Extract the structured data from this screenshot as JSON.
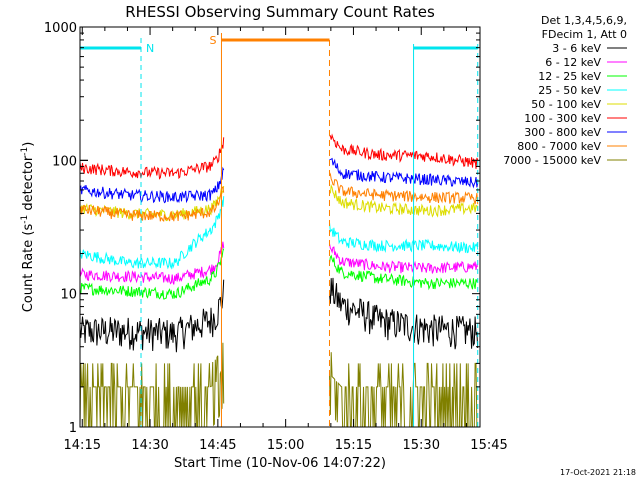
{
  "chart_data": {
    "type": "line",
    "title": "RHESSI Observing Summary Count Rates",
    "xlabel": "Start Time (10-Nov-06 14:07:22)",
    "ylabel_main": "Count Rate (s",
    "ylabel_sup1": "-1",
    "ylabel_mid": " detector",
    "ylabel_sup2": "-1",
    "ylabel_end": ")",
    "y_scale": "log",
    "ylim": [
      1,
      1000
    ],
    "xlim_minutes": [
      14.5,
      103
    ],
    "x_ticks": [
      {
        "label": "14:15",
        "minute": 15
      },
      {
        "label": "14:30",
        "minute": 30
      },
      {
        "label": "14:45",
        "minute": 45
      },
      {
        "label": "15:00",
        "minute": 60
      },
      {
        "label": "15:15",
        "minute": 75
      },
      {
        "label": "15:30",
        "minute": 90
      },
      {
        "label": "15:45",
        "minute": 105
      }
    ],
    "y_ticks": [
      {
        "label": "1",
        "value": 1
      },
      {
        "label": "10",
        "value": 10
      },
      {
        "label": "100",
        "value": 100
      },
      {
        "label": "1000",
        "value": 1000
      }
    ],
    "grid": false,
    "legend_position": "right",
    "legend_header": [
      "Det 1,3,4,5,6,9,",
      "FDecim 1, Att 0"
    ],
    "observing_gap_minutes": [
      46.3,
      69.7
    ],
    "series": [
      {
        "name": "3 - 6 keV",
        "color": "#000000",
        "before": [
          5.0,
          5.0,
          4.8,
          6.5
        ],
        "after": [
          8.5,
          6.0,
          5.2,
          5.0
        ]
      },
      {
        "name": "6 - 12 keV",
        "color": "#ff00ff",
        "before": [
          14.0,
          13.5,
          13.0,
          16.0
        ],
        "after": [
          18.0,
          16.0,
          15.5,
          16.0
        ]
      },
      {
        "name": "12 - 25 keV",
        "color": "#00ff00",
        "before": [
          11.0,
          10.5,
          10.0,
          14.0
        ],
        "after": [
          15.0,
          13.0,
          12.0,
          12.0
        ]
      },
      {
        "name": "25 - 50 keV",
        "color": "#00ffff",
        "before": [
          20.0,
          17.0,
          17.0,
          35.0
        ],
        "after": [
          25.0,
          23.0,
          23.0,
          22.0
        ]
      },
      {
        "name": "50 - 100 keV",
        "color": "#dddd00",
        "before": [
          44.0,
          40.0,
          39.0,
          45.0
        ],
        "after": [
          50.0,
          44.0,
          42.0,
          44.0
        ]
      },
      {
        "name": "100 - 300 keV",
        "color": "#ff0000",
        "before": [
          88.0,
          82.0,
          80.0,
          95.0
        ],
        "after": [
          125.0,
          110.0,
          108.0,
          95.0
        ]
      },
      {
        "name": "300 - 800 keV",
        "color": "#0000ff",
        "before": [
          60.0,
          55.0,
          53.0,
          56.0
        ],
        "after": [
          82.0,
          75.0,
          72.0,
          68.0
        ]
      },
      {
        "name": "800 - 7000 keV",
        "color": "#ff8000",
        "before": [
          43.0,
          39.0,
          38.0,
          42.0
        ],
        "after": [
          60.0,
          55.0,
          53.0,
          52.0
        ]
      },
      {
        "name": "7000 - 15000 keV",
        "color": "#808000",
        "before": [
          2.0,
          2.0,
          2.0,
          2.0
        ],
        "after": [
          2.0,
          2.0,
          2.0,
          2.0
        ]
      }
    ],
    "annotations": {
      "night_label": "N",
      "saa_label": "S",
      "timestamp": "17-Oct-2021 21:18"
    }
  }
}
